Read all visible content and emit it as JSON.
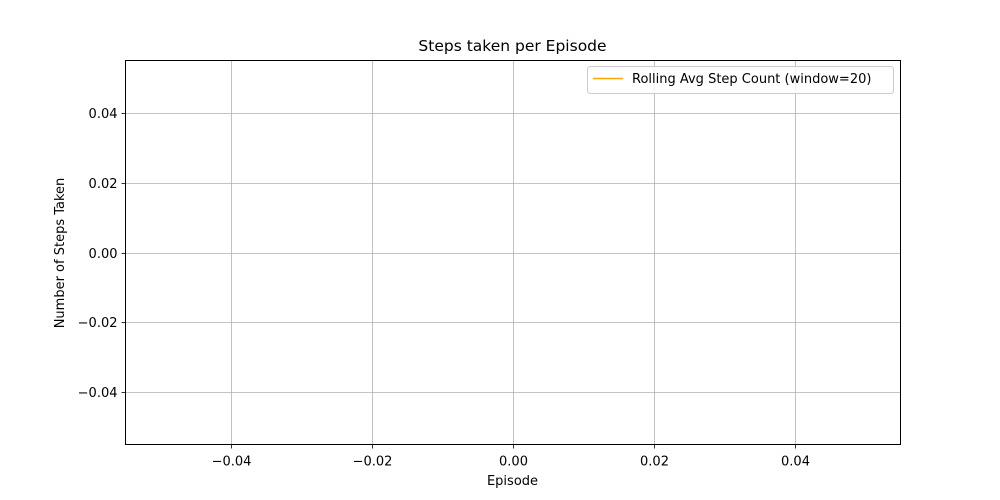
{
  "chart_data": {
    "type": "line",
    "title": "Steps taken per Episode",
    "xlabel": "Episode",
    "ylabel": "Number of Steps Taken",
    "xlim": [
      -0.055,
      0.055
    ],
    "ylim": [
      -0.055,
      0.055
    ],
    "xticks": [
      -0.04,
      -0.02,
      0.0,
      0.02,
      0.04
    ],
    "xtick_labels": [
      "−0.04",
      "−0.02",
      "0.00",
      "0.02",
      "0.04"
    ],
    "yticks": [
      -0.04,
      -0.02,
      0.0,
      0.02,
      0.04
    ],
    "ytick_labels": [
      "−0.04",
      "−0.02",
      "0.00",
      "0.02",
      "0.04"
    ],
    "grid": true,
    "legend_position": "upper right",
    "series": [
      {
        "name": "Rolling Avg Step Count (window=20)",
        "color": "#ffa500",
        "x": [],
        "y": []
      }
    ]
  }
}
